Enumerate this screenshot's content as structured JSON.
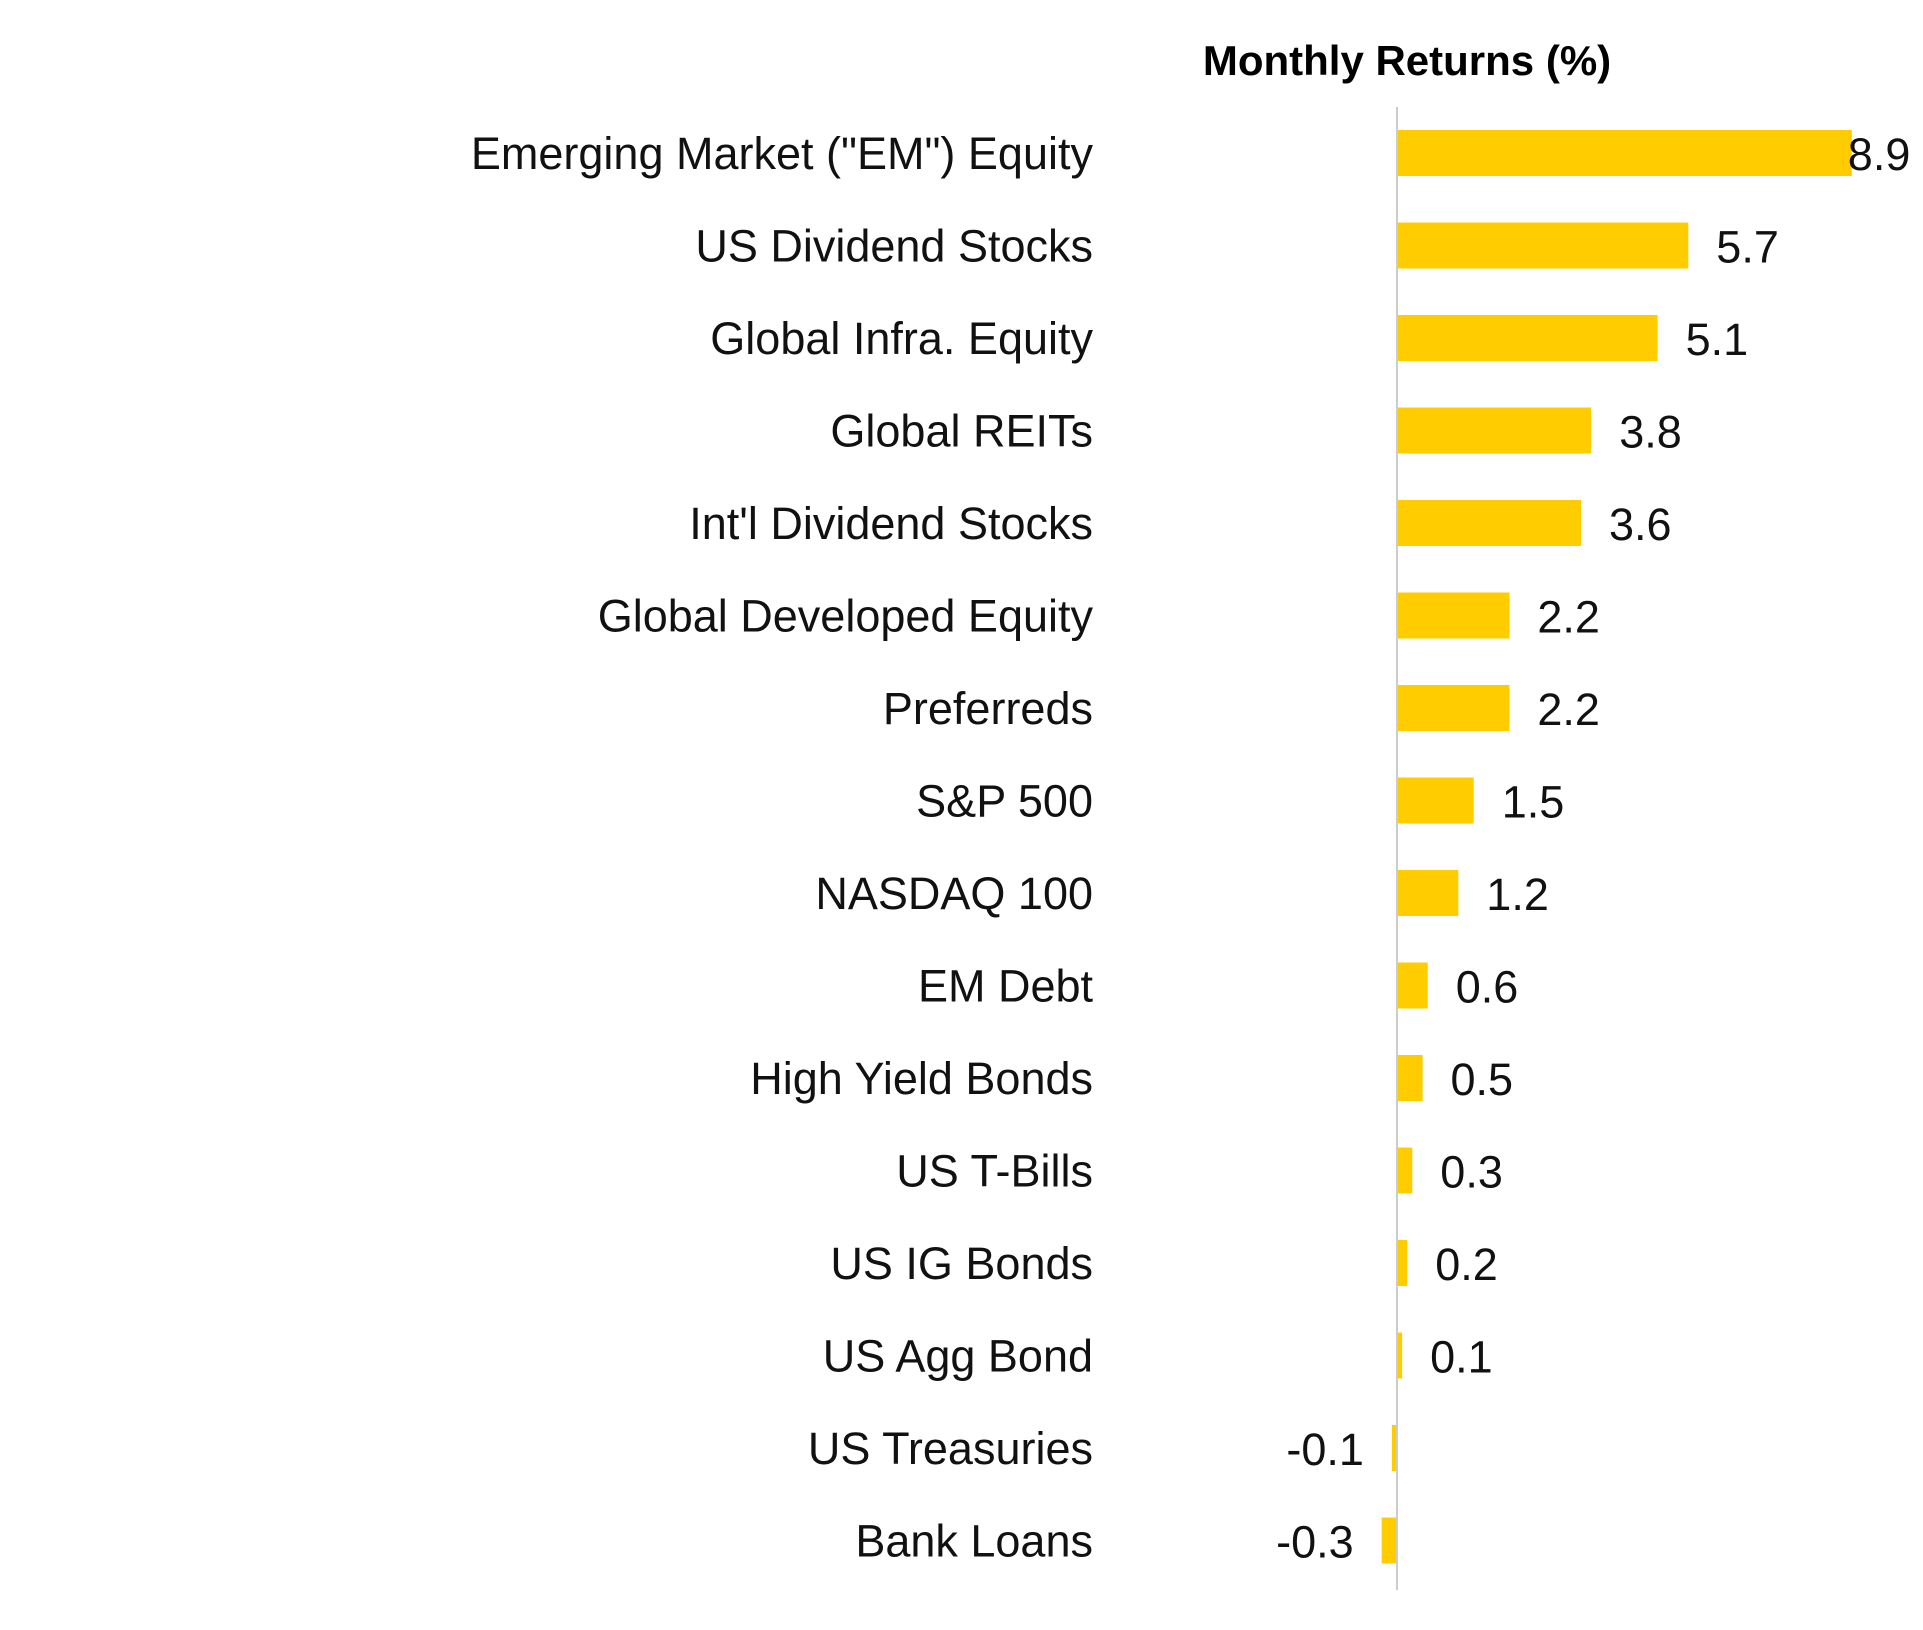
{
  "chart_data": {
    "type": "bar",
    "orientation": "horizontal",
    "title": "Monthly Returns (%)",
    "xlabel": "",
    "ylabel": "",
    "grid": false,
    "bar_color": "#FFCC00",
    "axis_color": "#CCCCCC",
    "categories": [
      "Emerging Market (\"EM\") Equity",
      "US Dividend Stocks",
      "Global Infra. Equity",
      "Global REITs",
      "Int'l Dividend Stocks",
      "Global Developed Equity",
      "Preferreds",
      "S&P 500",
      "NASDAQ 100",
      "EM Debt",
      "High Yield Bonds",
      "US T-Bills",
      "US IG Bonds",
      "US Agg Bond",
      "US Treasuries",
      "Bank Loans"
    ],
    "values": [
      8.9,
      5.7,
      5.1,
      3.8,
      3.6,
      2.2,
      2.2,
      1.5,
      1.2,
      0.6,
      0.5,
      0.3,
      0.2,
      0.1,
      -0.1,
      -0.3
    ],
    "value_labels": [
      "8.9",
      "5.7",
      "5.1",
      "3.8",
      "3.6",
      "2.2",
      "2.2",
      "1.5",
      "1.2",
      "0.6",
      "0.5",
      "0.3",
      "0.2",
      "0.1",
      "-0.1",
      "-0.3"
    ]
  }
}
